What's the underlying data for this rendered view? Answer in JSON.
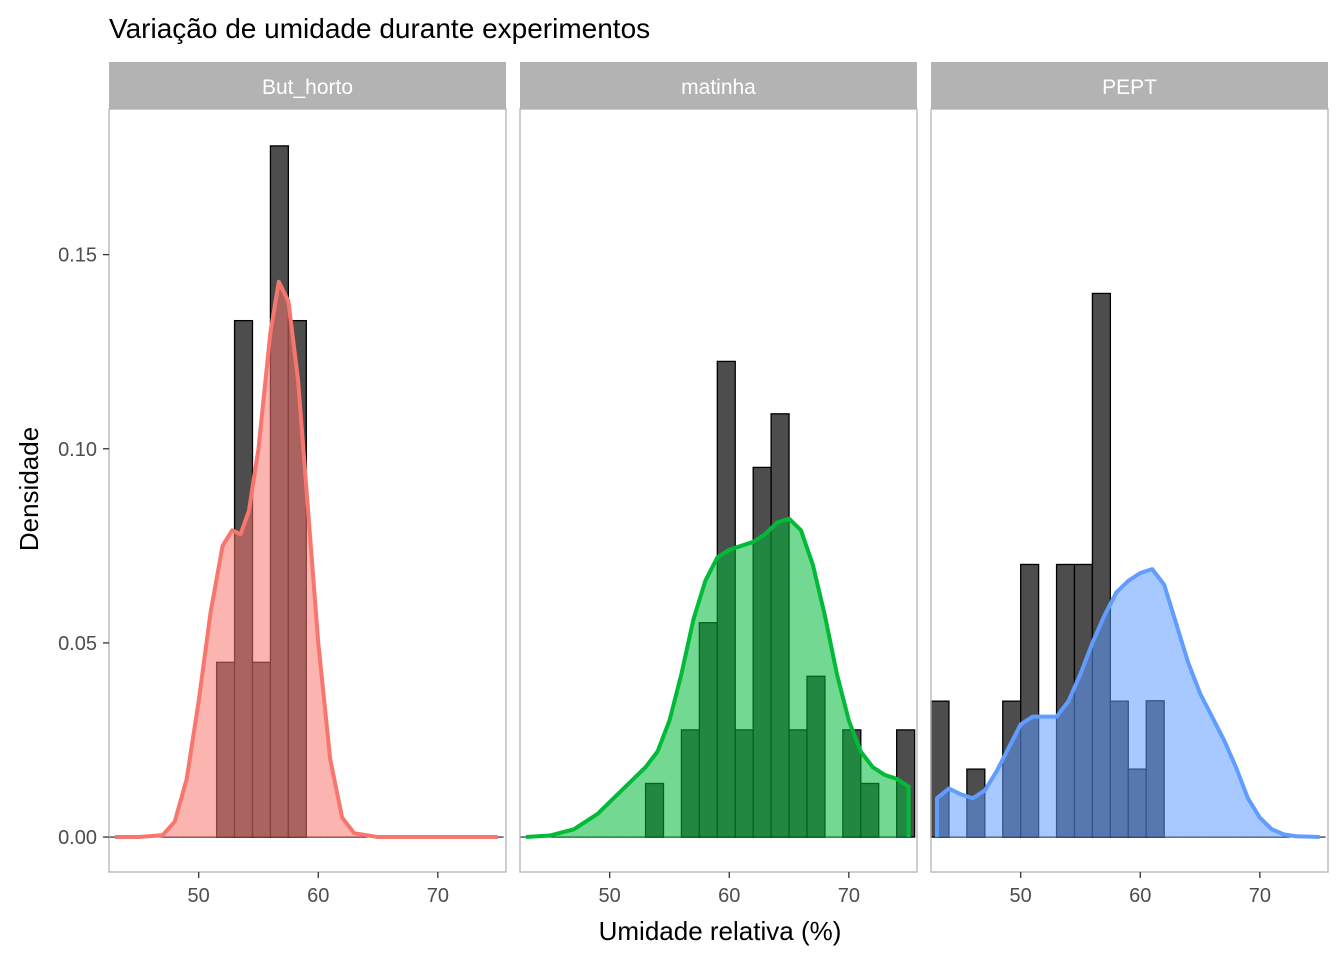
{
  "chart_data": {
    "type": "histogram",
    "title": "Variação de umidade durante experimentos",
    "xlabel": "Umidade relativa (%)",
    "ylabel": "Densidade",
    "xlim": [
      42.5,
      75.7
    ],
    "ylim": [
      -0.009,
      0.1875
    ],
    "x_ticks": [
      50,
      60,
      70
    ],
    "y_ticks": [
      0.0,
      0.05,
      0.1,
      0.15
    ],
    "y_tick_labels": [
      "0.00",
      "0.05",
      "0.10",
      "0.15"
    ],
    "x_tick_labels": [
      "50",
      "60",
      "70"
    ],
    "bin_width": 1.5,
    "bin_start": 42.5,
    "bar_color": "#4d4d4d",
    "strip_fill": "#b3b3b3",
    "panels": [
      {
        "name": "But_horto",
        "color": "#f8766d",
        "bars": [
          0,
          0,
          0,
          0,
          0,
          0,
          0.045,
          0.133,
          0.045,
          0.178,
          0.133,
          0,
          0,
          0,
          0,
          0,
          0,
          0,
          0,
          0,
          0,
          0
        ],
        "density": [
          [
            43,
            0
          ],
          [
            45,
            0
          ],
          [
            47,
            0.0005
          ],
          [
            48,
            0.004
          ],
          [
            49,
            0.015
          ],
          [
            50,
            0.035
          ],
          [
            51,
            0.058
          ],
          [
            52,
            0.075
          ],
          [
            52.8,
            0.079
          ],
          [
            53.5,
            0.078
          ],
          [
            54.2,
            0.084
          ],
          [
            55,
            0.1
          ],
          [
            56,
            0.13
          ],
          [
            56.7,
            0.143
          ],
          [
            57.5,
            0.138
          ],
          [
            58.3,
            0.118
          ],
          [
            59,
            0.09
          ],
          [
            60,
            0.05
          ],
          [
            61,
            0.02
          ],
          [
            62,
            0.005
          ],
          [
            63,
            0.001
          ],
          [
            65,
            0
          ],
          [
            70,
            0
          ],
          [
            75,
            0
          ]
        ]
      },
      {
        "name": "matinha",
        "color": "#00ba38",
        "bars": [
          0,
          0,
          0,
          0,
          0,
          0,
          0,
          0.0138,
          0,
          0.0276,
          0.0552,
          0.1225,
          0.0276,
          0.0952,
          0.109,
          0.0276,
          0.0414,
          0,
          0.0276,
          0.0138,
          0,
          0.0276
        ],
        "density": [
          [
            43,
            0
          ],
          [
            45,
            0.0004
          ],
          [
            47,
            0.002
          ],
          [
            48,
            0.004
          ],
          [
            49,
            0.006
          ],
          [
            50,
            0.009
          ],
          [
            51,
            0.012
          ],
          [
            52,
            0.015
          ],
          [
            53,
            0.018
          ],
          [
            54,
            0.022
          ],
          [
            55,
            0.03
          ],
          [
            56,
            0.042
          ],
          [
            57,
            0.056
          ],
          [
            58,
            0.066
          ],
          [
            59,
            0.072
          ],
          [
            60,
            0.074
          ],
          [
            61,
            0.075
          ],
          [
            62,
            0.076
          ],
          [
            63,
            0.078
          ],
          [
            64,
            0.081
          ],
          [
            65,
            0.082
          ],
          [
            66,
            0.079
          ],
          [
            67,
            0.07
          ],
          [
            68,
            0.057
          ],
          [
            69,
            0.042
          ],
          [
            70,
            0.03
          ],
          [
            71,
            0.022
          ],
          [
            72,
            0.018
          ],
          [
            73,
            0.016
          ],
          [
            74,
            0.015
          ],
          [
            75,
            0.013
          ]
        ]
      },
      {
        "name": "PEPT",
        "color": "#619cff",
        "bars": [
          0.035,
          0,
          0.0175,
          0,
          0.035,
          0.0702,
          0,
          0.0702,
          0.0702,
          0.14,
          0.035,
          0.0175,
          0.0351,
          0,
          0,
          0,
          0,
          0,
          0,
          0,
          0,
          0
        ],
        "density": [
          [
            43,
            0.01
          ],
          [
            44,
            0.0125
          ],
          [
            45,
            0.011
          ],
          [
            46,
            0.01
          ],
          [
            47,
            0.012
          ],
          [
            48,
            0.017
          ],
          [
            49,
            0.023
          ],
          [
            50,
            0.029
          ],
          [
            51,
            0.031
          ],
          [
            52,
            0.031
          ],
          [
            53,
            0.031
          ],
          [
            54,
            0.035
          ],
          [
            55,
            0.042
          ],
          [
            56,
            0.05
          ],
          [
            57,
            0.057
          ],
          [
            58,
            0.063
          ],
          [
            59,
            0.066
          ],
          [
            60,
            0.068
          ],
          [
            61,
            0.069
          ],
          [
            62,
            0.065
          ],
          [
            63,
            0.055
          ],
          [
            64,
            0.045
          ],
          [
            65,
            0.037
          ],
          [
            66,
            0.031
          ],
          [
            67,
            0.025
          ],
          [
            68,
            0.018
          ],
          [
            69,
            0.01
          ],
          [
            70,
            0.005
          ],
          [
            71,
            0.002
          ],
          [
            72,
            0.0007
          ],
          [
            73,
            0.0002
          ],
          [
            75,
            0
          ]
        ]
      }
    ]
  }
}
